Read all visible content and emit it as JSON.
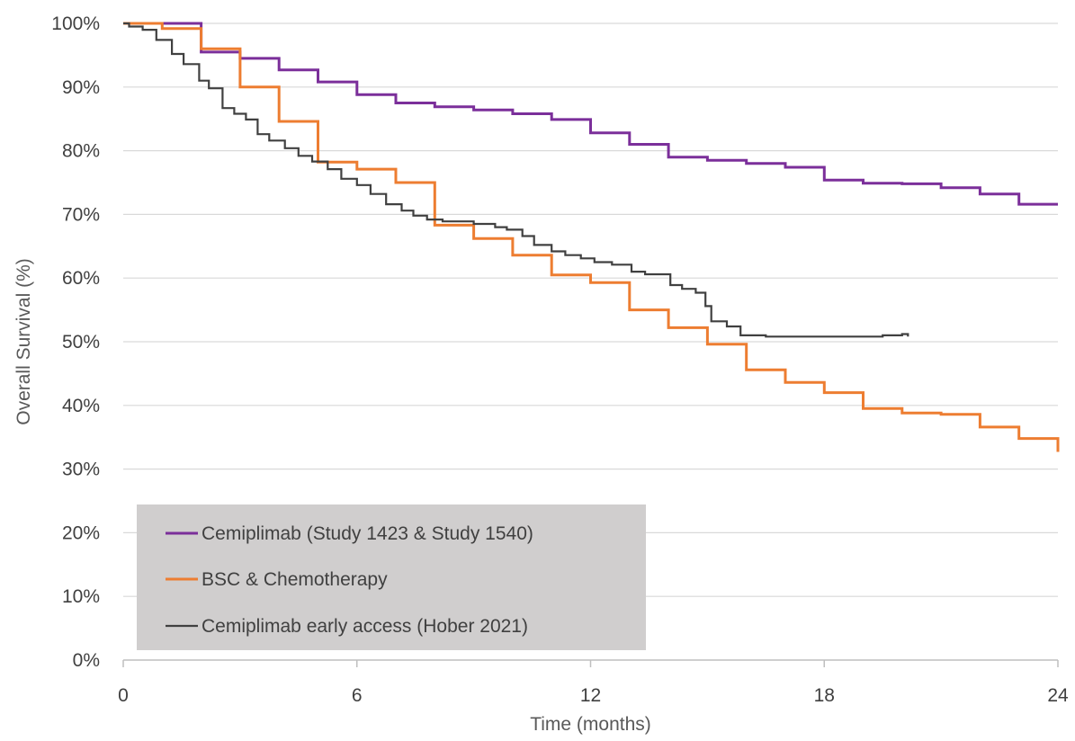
{
  "chart_data": {
    "type": "line",
    "xlabel": "Time (months)",
    "ylabel": "Overall Survival (%)",
    "xlim": [
      0,
      24
    ],
    "ylim": [
      0,
      100
    ],
    "x_ticks": [
      0,
      6,
      12,
      18,
      24
    ],
    "x_tick_labels": [
      "0",
      "6",
      "12",
      "18",
      "24"
    ],
    "y_ticks": [
      0,
      10,
      20,
      30,
      40,
      50,
      60,
      70,
      80,
      90,
      100
    ],
    "y_tick_labels": [
      "0%",
      "10%",
      "20%",
      "30%",
      "40%",
      "50%",
      "60%",
      "70%",
      "80%",
      "90%",
      "100%"
    ],
    "grid": "horizontal",
    "legend_position": "bottom-left",
    "step": true,
    "series": [
      {
        "name": "Cemiplimab (Study 1423 & Study 1540)",
        "color": "#7B2F9A",
        "x": [
          0,
          2,
          3,
          4,
          5,
          6,
          7,
          8,
          9,
          10,
          11,
          12,
          13,
          14,
          15,
          16,
          17,
          18,
          19,
          20,
          21,
          22,
          23,
          24
        ],
        "y": [
          100,
          95.5,
          94.5,
          92.7,
          90.8,
          88.8,
          87.5,
          86.9,
          86.4,
          85.8,
          84.9,
          82.8,
          81.0,
          79.0,
          78.5,
          78.0,
          77.4,
          75.4,
          74.9,
          74.8,
          74.2,
          73.2,
          71.6,
          71.6
        ]
      },
      {
        "name": "BSC & Chemotherapy",
        "color": "#ED7D31",
        "x": [
          0,
          1,
          2,
          3,
          4,
          5,
          6,
          7,
          8,
          9,
          10,
          11,
          12,
          13,
          14,
          15,
          16,
          17,
          18,
          19,
          20,
          21,
          22,
          23,
          23.97,
          24
        ],
        "y": [
          100,
          99.2,
          96.0,
          90.0,
          84.6,
          78.2,
          77.1,
          75.0,
          68.3,
          66.2,
          63.6,
          60.5,
          59.3,
          55.0,
          52.2,
          49.6,
          45.6,
          43.6,
          42.0,
          39.5,
          38.8,
          38.6,
          36.6,
          34.8,
          34.8,
          32.7
        ]
      },
      {
        "name": "Cemiplimab early access (Hober 2021)",
        "color": "#404040",
        "x": [
          0,
          0.15,
          0.5,
          0.85,
          1.25,
          1.55,
          1.95,
          2.2,
          2.55,
          2.85,
          3.15,
          3.45,
          3.75,
          4.15,
          4.5,
          4.85,
          5.25,
          5.6,
          6.0,
          6.35,
          6.75,
          7.15,
          7.45,
          7.8,
          8.2,
          8.6,
          9.0,
          9.55,
          9.85,
          10.25,
          10.55,
          11.0,
          11.35,
          11.75,
          12.1,
          12.55,
          13.05,
          13.4,
          14.05,
          14.35,
          14.7,
          14.95,
          15.1,
          15.5,
          15.85,
          16.5,
          17.5,
          18.5,
          19.5,
          20.0,
          20.15
        ],
        "y": [
          100,
          99.5,
          99.0,
          97.4,
          95.2,
          93.6,
          91.0,
          89.8,
          86.7,
          85.8,
          84.9,
          82.6,
          81.6,
          80.4,
          79.2,
          78.3,
          77.1,
          75.6,
          74.6,
          73.2,
          71.6,
          70.6,
          69.8,
          69.2,
          68.9,
          68.9,
          68.5,
          68.0,
          67.6,
          66.6,
          65.2,
          64.2,
          63.6,
          63.1,
          62.5,
          62.1,
          61.0,
          60.6,
          58.9,
          58.3,
          57.7,
          55.6,
          53.2,
          52.4,
          51.0,
          50.8,
          50.8,
          50.8,
          51.0,
          51.2,
          50.8
        ]
      }
    ]
  }
}
